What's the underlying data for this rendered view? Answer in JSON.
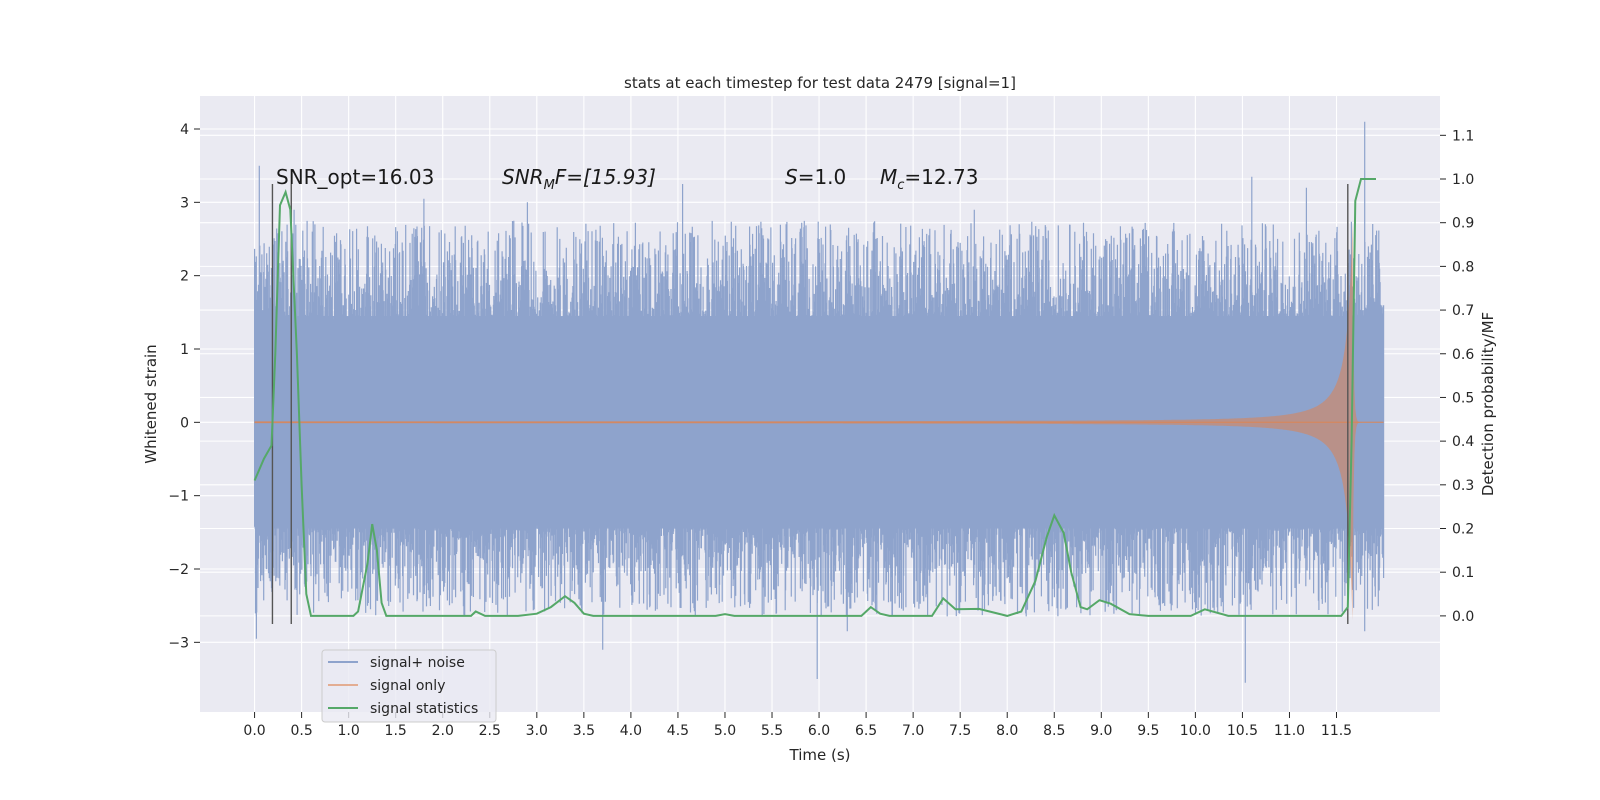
{
  "chart_data": {
    "type": "line",
    "title": "stats at each timestep for test data 2479 [signal=1]",
    "xlabel": "Time (s)",
    "ylabel": "Whitened strain",
    "ylabel_right": "Detection probability/MF",
    "xlim": [
      -0.58,
      12.6
    ],
    "ylim": [
      -3.95,
      4.45
    ],
    "ylim_right": [
      -0.22,
      1.19
    ],
    "xticks": [
      0.0,
      0.5,
      1.0,
      1.5,
      2.0,
      2.5,
      3.0,
      3.5,
      4.0,
      4.5,
      5.0,
      5.5,
      6.0,
      6.5,
      7.0,
      7.5,
      8.0,
      8.5,
      9.0,
      9.5,
      10.0,
      10.5,
      11.0,
      11.5
    ],
    "xtick_labels": [
      "0.0",
      "0.5",
      "1.0",
      "1.5",
      "2.0",
      "2.5",
      "3.0",
      "3.5",
      "4.0",
      "4.5",
      "5.0",
      "5.5",
      "6.0",
      "6.5",
      "7.0",
      "7.5",
      "8.0",
      "8.5",
      "9.0",
      "9.5",
      "10.0",
      "10.5",
      "11.0",
      "11.5"
    ],
    "yticks": [
      -3,
      -2,
      -1,
      0,
      1,
      2,
      3,
      4
    ],
    "ytick_labels": [
      "−3",
      "−2",
      "−1",
      "0",
      "1",
      "2",
      "3",
      "4"
    ],
    "yticks_right": [
      0.0,
      0.1,
      0.2,
      0.3,
      0.4,
      0.5,
      0.6,
      0.7,
      0.8,
      0.9,
      1.0,
      1.1
    ],
    "ytick_right_labels": [
      "0.0",
      "0.1",
      "0.2",
      "0.3",
      "0.4",
      "0.5",
      "0.6",
      "0.7",
      "0.8",
      "0.9",
      "1.0",
      "1.1"
    ],
    "grid": true,
    "legend_position": "lower-left",
    "annotations": {
      "snr_opt": "SNR_opt=16.03",
      "snr_mf_name": "SNR",
      "snr_mf_sub": "M",
      "snr_mf_rest": "F=[15.93]",
      "s_name": "S",
      "s_rest": "=1.0",
      "mc_name": "M",
      "mc_sub": "c",
      "mc_rest": "=12.73"
    },
    "vlines": [
      {
        "x": 0.19,
        "y_top": 3.25,
        "y_bottom": -2.75
      },
      {
        "x": 0.39,
        "y_top": 3.25,
        "y_bottom": -2.75
      },
      {
        "x": 11.62,
        "y_top": 3.25,
        "y_bottom": -2.75
      }
    ],
    "series": [
      {
        "name": "signal+ noise",
        "color": "#8ea3cc",
        "axis": "left",
        "x_range": [
          0.0,
          12.0
        ],
        "envelope": 1.45,
        "peaks_high": [
          [
            0.05,
            3.5
          ],
          [
            0.42,
            2.9
          ],
          [
            1.8,
            3.05
          ],
          [
            2.9,
            3.0
          ],
          [
            4.55,
            3.25
          ],
          [
            5.65,
            2.7
          ],
          [
            7.65,
            2.9
          ],
          [
            10.6,
            3.35
          ],
          [
            11.18,
            3.2
          ],
          [
            11.8,
            4.1
          ]
        ],
        "peaks_low": [
          [
            0.02,
            -2.95
          ],
          [
            1.2,
            -2.5
          ],
          [
            3.7,
            -3.1
          ],
          [
            5.98,
            -3.5
          ],
          [
            6.3,
            -2.85
          ],
          [
            10.53,
            -3.55
          ],
          [
            11.8,
            -2.85
          ]
        ]
      },
      {
        "name": "signal only",
        "color": "#dd8452",
        "axis": "left",
        "x_range": [
          0.0,
          12.0
        ],
        "chirp_peak_t": 11.67,
        "chirp_peak_amp": 2.7
      },
      {
        "name": "signal statistics",
        "color": "#55a868",
        "axis": "right",
        "points": [
          [
            0.0,
            0.31
          ],
          [
            0.1,
            0.36
          ],
          [
            0.18,
            0.39
          ],
          [
            0.22,
            0.6
          ],
          [
            0.27,
            0.94
          ],
          [
            0.33,
            0.97
          ],
          [
            0.38,
            0.93
          ],
          [
            0.45,
            0.6
          ],
          [
            0.5,
            0.3
          ],
          [
            0.55,
            0.05
          ],
          [
            0.6,
            0.0
          ],
          [
            1.05,
            0.0
          ],
          [
            1.1,
            0.01
          ],
          [
            1.2,
            0.12
          ],
          [
            1.25,
            0.21
          ],
          [
            1.3,
            0.15
          ],
          [
            1.35,
            0.03
          ],
          [
            1.4,
            0.0
          ],
          [
            2.3,
            0.0
          ],
          [
            2.35,
            0.01
          ],
          [
            2.45,
            0.0
          ],
          [
            2.8,
            0.0
          ],
          [
            3.0,
            0.005
          ],
          [
            3.15,
            0.02
          ],
          [
            3.3,
            0.045
          ],
          [
            3.4,
            0.03
          ],
          [
            3.5,
            0.005
          ],
          [
            3.6,
            0.0
          ],
          [
            4.9,
            0.0
          ],
          [
            5.0,
            0.004
          ],
          [
            5.1,
            0.0
          ],
          [
            6.45,
            0.0
          ],
          [
            6.55,
            0.02
          ],
          [
            6.65,
            0.005
          ],
          [
            6.75,
            0.0
          ],
          [
            7.2,
            0.0
          ],
          [
            7.32,
            0.04
          ],
          [
            7.45,
            0.015
          ],
          [
            7.7,
            0.016
          ],
          [
            7.85,
            0.008
          ],
          [
            8.0,
            0.0
          ],
          [
            8.15,
            0.01
          ],
          [
            8.3,
            0.08
          ],
          [
            8.42,
            0.18
          ],
          [
            8.5,
            0.23
          ],
          [
            8.6,
            0.19
          ],
          [
            8.68,
            0.1
          ],
          [
            8.78,
            0.02
          ],
          [
            8.85,
            0.015
          ],
          [
            8.98,
            0.036
          ],
          [
            9.1,
            0.028
          ],
          [
            9.3,
            0.004
          ],
          [
            9.5,
            0.0
          ],
          [
            9.95,
            0.0
          ],
          [
            10.1,
            0.015
          ],
          [
            10.35,
            0.0
          ],
          [
            11.55,
            0.0
          ],
          [
            11.62,
            0.02
          ],
          [
            11.66,
            0.4
          ],
          [
            11.7,
            0.95
          ],
          [
            11.76,
            1.0
          ],
          [
            11.92,
            1.0
          ]
        ]
      }
    ]
  }
}
